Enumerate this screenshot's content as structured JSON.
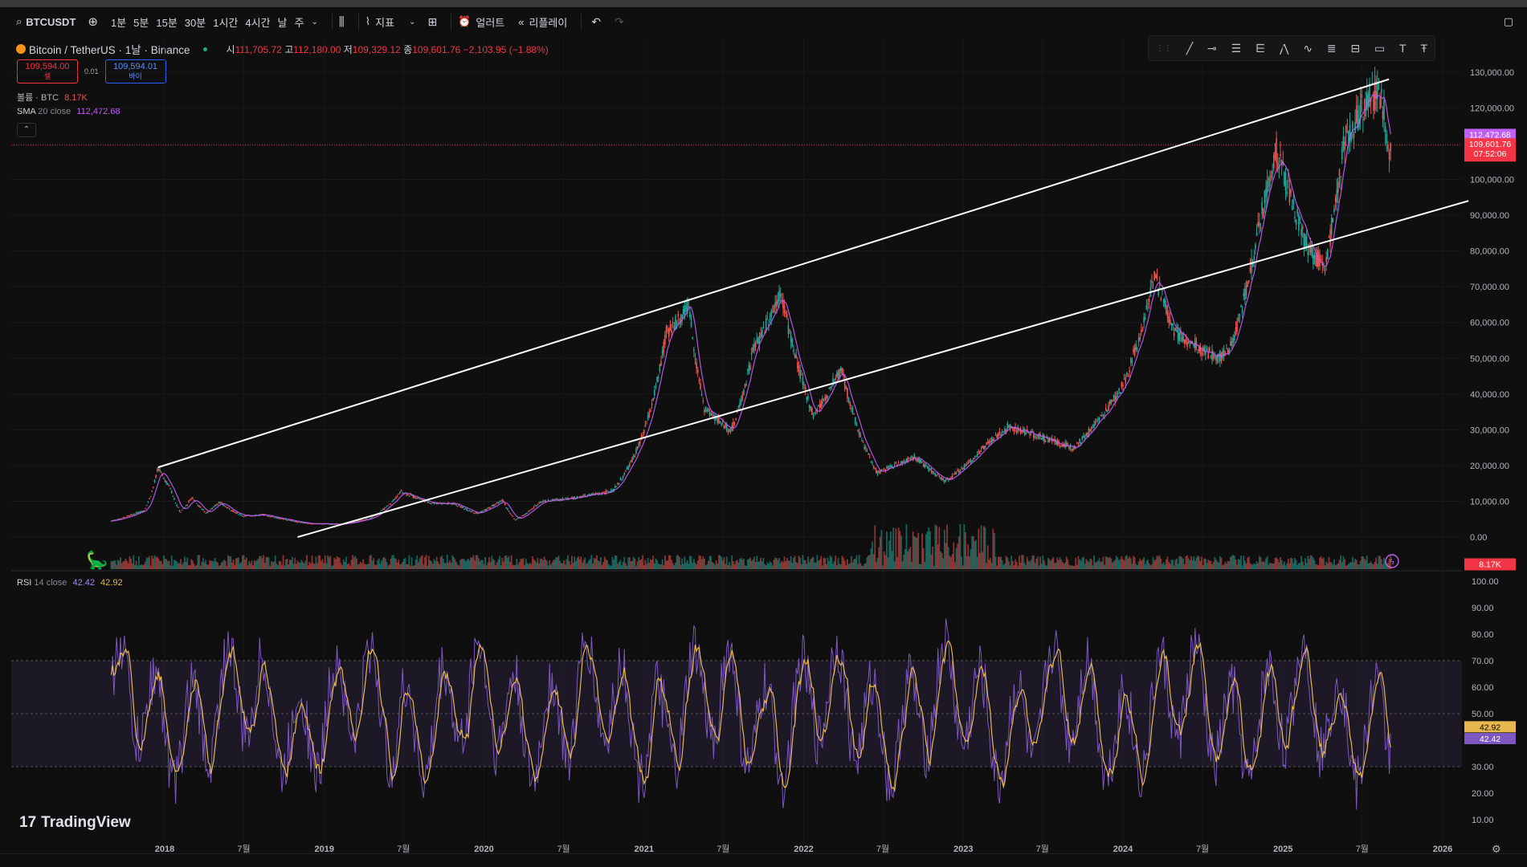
{
  "toolbar": {
    "symbol": "BTCUSDT",
    "intervals": [
      "1분",
      "5분",
      "15분",
      "30분",
      "1시간",
      "4시간",
      "날",
      "주"
    ],
    "indicators_label": "지표",
    "alert_label": "얼러트",
    "replay_label": "리플레이"
  },
  "legend": {
    "title": "Bitcoin / TetherUS · 1날 · Binance",
    "open_label": "시",
    "open": "111,705.72",
    "high_label": "고",
    "high": "112,180.00",
    "low_label": "저",
    "low": "109,329.12",
    "close_label": "종",
    "close": "109,601.76",
    "change": "−2,103.95 (−1.88%)"
  },
  "trade": {
    "sell_price": "109,594.00",
    "sell_label": "셀",
    "spread": "0.01",
    "buy_price": "109,594.01",
    "buy_label": "바이"
  },
  "volume_indicator": {
    "label": "볼륨 · BTC",
    "value": "8.17K"
  },
  "sma_indicator": {
    "label": "SMA",
    "params": "20 close",
    "value": "112,472.68"
  },
  "rsi_indicator": {
    "label": "RSI",
    "params": "14 close",
    "value1": "42.42",
    "value2": "42.92"
  },
  "price_badges": {
    "sma": "112,472.68",
    "last": "109,601.76",
    "countdown": "07:52:06",
    "volume": "8.17K"
  },
  "rsi_badges": {
    "ma": "42.92",
    "rsi": "42.42"
  },
  "watermark": "TradingView",
  "colors": {
    "up": "#26a69a",
    "down": "#ef5350",
    "sma": "#c05ef7",
    "rsi": "#7e57c2",
    "rsi_ma": "#e8b84f",
    "trend": "#ffffff"
  },
  "chart_data": {
    "type": "candlestick",
    "interval": "1D",
    "y_ticks": [
      "130,000.00",
      "120,000.00",
      "110,000.00",
      "100,000.00",
      "90,000.00",
      "80,000.00",
      "70,000.00",
      "60,000.00",
      "50,000.00",
      "40,000.00",
      "30,000.00",
      "20,000.00",
      "10,000.00",
      "0.00"
    ],
    "rsi_ticks": [
      "100.00",
      "90.00",
      "80.00",
      "70.00",
      "60.00",
      "50.00",
      "40.00",
      "30.00",
      "20.00",
      "10.00"
    ],
    "x_ticks": [
      "2018",
      "7월",
      "2019",
      "7월",
      "2020",
      "7월",
      "2021",
      "7월",
      "2022",
      "7월",
      "2023",
      "7월",
      "2024",
      "7월",
      "2025",
      "7월",
      "2026"
    ],
    "price_series": [
      [
        "2017-09-01",
        4500
      ],
      [
        "2017-11-15",
        7500
      ],
      [
        "2017-12-17",
        19500
      ],
      [
        "2018-01-15",
        13500
      ],
      [
        "2018-02-06",
        7000
      ],
      [
        "2018-03-05",
        11200
      ],
      [
        "2018-04-06",
        6700
      ],
      [
        "2018-05-05",
        9800
      ],
      [
        "2018-06-30",
        5900
      ],
      [
        "2018-08-15",
        6300
      ],
      [
        "2018-11-25",
        3800
      ],
      [
        "2019-02-08",
        3600
      ],
      [
        "2019-04-15",
        5200
      ],
      [
        "2019-06-26",
        12800
      ],
      [
        "2019-09-01",
        9600
      ],
      [
        "2019-10-26",
        9300
      ],
      [
        "2019-12-17",
        6600
      ],
      [
        "2020-02-13",
        10400
      ],
      [
        "2020-03-13",
        4800
      ],
      [
        "2020-05-08",
        9900
      ],
      [
        "2020-07-27",
        11000
      ],
      [
        "2020-10-21",
        12900
      ],
      [
        "2020-12-31",
        29000
      ],
      [
        "2021-02-21",
        57000
      ],
      [
        "2021-04-14",
        64500
      ],
      [
        "2021-05-19",
        36000
      ],
      [
        "2021-07-20",
        29800
      ],
      [
        "2021-09-07",
        52000
      ],
      [
        "2021-11-10",
        69000
      ],
      [
        "2022-01-24",
        34000
      ],
      [
        "2022-03-28",
        47500
      ],
      [
        "2022-06-18",
        18000
      ],
      [
        "2022-09-12",
        22500
      ],
      [
        "2022-11-21",
        15600
      ],
      [
        "2023-02-16",
        25000
      ],
      [
        "2023-04-14",
        31000
      ],
      [
        "2023-09-11",
        25000
      ],
      [
        "2023-12-31",
        42300
      ],
      [
        "2024-03-14",
        73000
      ],
      [
        "2024-05-01",
        57000
      ],
      [
        "2024-08-05",
        50000
      ],
      [
        "2024-09-06",
        53500
      ],
      [
        "2024-11-12",
        90000
      ],
      [
        "2024-12-17",
        108000
      ],
      [
        "2025-02-28",
        80000
      ],
      [
        "2025-04-07",
        76000
      ],
      [
        "2025-05-22",
        111000
      ],
      [
        "2025-07-14",
        123000
      ],
      [
        "2025-08-14",
        124000
      ],
      [
        "2025-09-01",
        108000
      ],
      [
        "2025-09-05",
        109600
      ]
    ],
    "sma20_last": 112472.68,
    "last_price": 109601.76,
    "trendlines": [
      {
        "name": "upper",
        "from": [
          "2017-12-17",
          19500
        ],
        "to": [
          "2025-08-31",
          128000
        ]
      },
      {
        "name": "lower",
        "from": [
          "2018-11-01",
          0
        ],
        "to": [
          "2026-03-01",
          94000
        ]
      }
    ],
    "horizontal_line": 109601.76,
    "rsi_range": [
      0,
      100
    ],
    "rsi_bands": [
      30,
      50,
      70
    ],
    "rsi_last": 42.42,
    "rsi_ma_last": 42.92
  }
}
